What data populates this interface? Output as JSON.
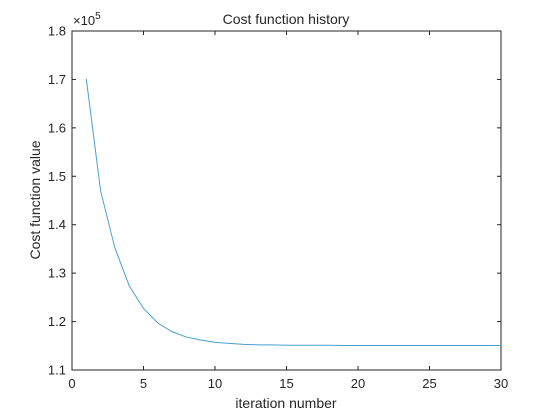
{
  "chart_data": {
    "type": "line",
    "title": "Cost function history",
    "xlabel": "iteration number",
    "ylabel": "Cost function value",
    "y_multiplier": {
      "base": "×10",
      "exponent": "5"
    },
    "xlim": [
      0,
      30
    ],
    "ylim": [
      1.1,
      1.8
    ],
    "x_ticks": [
      0,
      5,
      10,
      15,
      20,
      25,
      30
    ],
    "x_tick_labels": [
      "0",
      "5",
      "10",
      "15",
      "20",
      "25",
      "30"
    ],
    "y_ticks": [
      1.1,
      1.2,
      1.3,
      1.4,
      1.5,
      1.6,
      1.7,
      1.8
    ],
    "y_tick_labels": [
      "1.1",
      "1.2",
      "1.3",
      "1.4",
      "1.5",
      "1.6",
      "1.7",
      "1.8"
    ],
    "grid": false,
    "line_color": "#4A9FD0",
    "axis_color": "#262626",
    "series": [
      {
        "x": [
          1,
          2,
          3,
          4,
          5,
          6,
          7,
          8,
          9,
          10,
          11,
          12,
          13,
          14,
          15,
          16,
          17,
          18,
          19,
          20,
          21,
          22,
          23,
          24,
          25,
          26,
          27,
          28,
          29,
          30
        ],
        "values": [
          1.701,
          1.47,
          1.352,
          1.274,
          1.227,
          1.197,
          1.179,
          1.168,
          1.162,
          1.157,
          1.155,
          1.153,
          1.152,
          1.152,
          1.151,
          1.151,
          1.151,
          1.151,
          1.1505,
          1.1505,
          1.1505,
          1.1505,
          1.1505,
          1.1505,
          1.1505,
          1.1505,
          1.1505,
          1.1505,
          1.1505,
          1.1505
        ]
      }
    ]
  }
}
